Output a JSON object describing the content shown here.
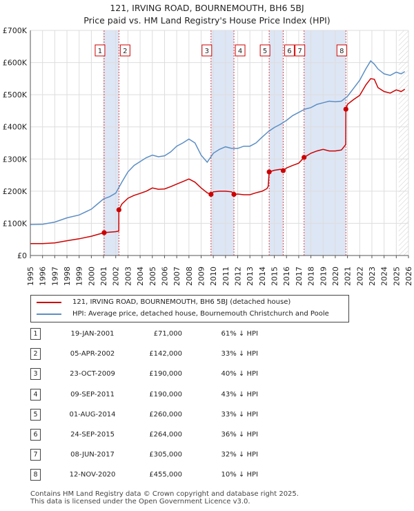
{
  "title": "121, IRVING ROAD, BOURNEMOUTH, BH6 5BJ",
  "subtitle": "Price paid vs. HM Land Registry's House Price Index (HPI)",
  "chart_data": {
    "type": "line",
    "title": "121, IRVING ROAD, BOURNEMOUTH, BH6 5BJ",
    "subtitle": "Price paid vs. HM Land Registry's House Price Index (HPI)",
    "xlim": [
      1995,
      2026
    ],
    "ylim": [
      0,
      700000
    ],
    "y_ticks": [
      0,
      100000,
      200000,
      300000,
      400000,
      500000,
      600000,
      700000
    ],
    "y_tick_labels": [
      "£0",
      "£100K",
      "£200K",
      "£300K",
      "£400K",
      "£500K",
      "£600K",
      "£700K"
    ],
    "x_ticks": [
      1995,
      1996,
      1997,
      1998,
      1999,
      2000,
      2001,
      2002,
      2003,
      2004,
      2005,
      2006,
      2007,
      2008,
      2009,
      2010,
      2011,
      2012,
      2013,
      2014,
      2015,
      2016,
      2017,
      2018,
      2019,
      2020,
      2021,
      2022,
      2023,
      2024,
      2025,
      2026
    ],
    "grid": true,
    "shaded_ranges": [
      [
        2001.05,
        2002.26
      ],
      [
        2009.81,
        2011.69
      ],
      [
        2014.58,
        2015.73
      ],
      [
        2017.44,
        2020.87
      ]
    ],
    "forecast_start": 2025.2,
    "series": [
      {
        "name": "121, IRVING ROAD, BOURNEMOUTH, BH6 5BJ (detached house)",
        "color": "#cc0000",
        "points": [
          [
            1995.0,
            37000
          ],
          [
            1996.0,
            37000
          ],
          [
            1997.0,
            39000
          ],
          [
            1998.0,
            46000
          ],
          [
            1999.0,
            52000
          ],
          [
            2000.0,
            60000
          ],
          [
            2001.05,
            71000
          ],
          [
            2002.0,
            74000
          ],
          [
            2002.25,
            76000
          ],
          [
            2002.26,
            142000
          ],
          [
            2002.5,
            160000
          ],
          [
            2003.0,
            178000
          ],
          [
            2003.5,
            187000
          ],
          [
            2004.0,
            193000
          ],
          [
            2004.5,
            200000
          ],
          [
            2005.0,
            210000
          ],
          [
            2005.5,
            206000
          ],
          [
            2006.0,
            207000
          ],
          [
            2006.5,
            214000
          ],
          [
            2007.0,
            222000
          ],
          [
            2007.5,
            230000
          ],
          [
            2008.0,
            238000
          ],
          [
            2008.5,
            228000
          ],
          [
            2009.0,
            210000
          ],
          [
            2009.5,
            195000
          ],
          [
            2009.81,
            190000
          ],
          [
            2010.0,
            198000
          ],
          [
            2010.5,
            200000
          ],
          [
            2011.0,
            200000
          ],
          [
            2011.5,
            198000
          ],
          [
            2011.69,
            190000
          ],
          [
            2012.0,
            191000
          ],
          [
            2012.5,
            189000
          ],
          [
            2013.0,
            189000
          ],
          [
            2013.5,
            195000
          ],
          [
            2014.0,
            200000
          ],
          [
            2014.4,
            208000
          ],
          [
            2014.5,
            215000
          ],
          [
            2014.58,
            260000
          ],
          [
            2015.0,
            265000
          ],
          [
            2015.5,
            268000
          ],
          [
            2015.73,
            264000
          ],
          [
            2016.0,
            272000
          ],
          [
            2016.5,
            280000
          ],
          [
            2017.0,
            287000
          ],
          [
            2017.44,
            305000
          ],
          [
            2018.0,
            318000
          ],
          [
            2018.5,
            325000
          ],
          [
            2019.0,
            330000
          ],
          [
            2019.5,
            325000
          ],
          [
            2020.0,
            325000
          ],
          [
            2020.5,
            328000
          ],
          [
            2020.86,
            345000
          ],
          [
            2020.87,
            455000
          ],
          [
            2021.0,
            470000
          ],
          [
            2021.5,
            485000
          ],
          [
            2022.0,
            498000
          ],
          [
            2022.5,
            530000
          ],
          [
            2022.9,
            550000
          ],
          [
            2023.2,
            548000
          ],
          [
            2023.5,
            522000
          ],
          [
            2024.0,
            510000
          ],
          [
            2024.5,
            505000
          ],
          [
            2025.0,
            515000
          ],
          [
            2025.4,
            510000
          ],
          [
            2025.7,
            517000
          ]
        ]
      },
      {
        "name": "HPI: Average price, detached house, Bournemouth Christchurch and Poole",
        "color": "#5b8ec4",
        "points": [
          [
            1995.0,
            96000
          ],
          [
            1996.0,
            97000
          ],
          [
            1997.0,
            104000
          ],
          [
            1998.0,
            117000
          ],
          [
            1999.0,
            126000
          ],
          [
            2000.0,
            144000
          ],
          [
            2000.5,
            160000
          ],
          [
            2001.0,
            176000
          ],
          [
            2001.5,
            183000
          ],
          [
            2002.0,
            194000
          ],
          [
            2002.5,
            228000
          ],
          [
            2003.0,
            260000
          ],
          [
            2003.5,
            280000
          ],
          [
            2004.0,
            292000
          ],
          [
            2004.5,
            304000
          ],
          [
            2005.0,
            312000
          ],
          [
            2005.5,
            307000
          ],
          [
            2006.0,
            310000
          ],
          [
            2006.5,
            322000
          ],
          [
            2007.0,
            340000
          ],
          [
            2007.5,
            350000
          ],
          [
            2008.0,
            362000
          ],
          [
            2008.5,
            350000
          ],
          [
            2009.0,
            312000
          ],
          [
            2009.5,
            290000
          ],
          [
            2010.0,
            318000
          ],
          [
            2010.5,
            330000
          ],
          [
            2011.0,
            338000
          ],
          [
            2011.5,
            333000
          ],
          [
            2012.0,
            333000
          ],
          [
            2012.5,
            340000
          ],
          [
            2013.0,
            340000
          ],
          [
            2013.5,
            350000
          ],
          [
            2014.0,
            368000
          ],
          [
            2014.5,
            385000
          ],
          [
            2015.0,
            398000
          ],
          [
            2015.5,
            408000
          ],
          [
            2016.0,
            420000
          ],
          [
            2016.5,
            435000
          ],
          [
            2017.0,
            445000
          ],
          [
            2017.5,
            455000
          ],
          [
            2018.0,
            460000
          ],
          [
            2018.5,
            470000
          ],
          [
            2019.0,
            475000
          ],
          [
            2019.5,
            480000
          ],
          [
            2020.0,
            478000
          ],
          [
            2020.5,
            480000
          ],
          [
            2021.0,
            495000
          ],
          [
            2021.5,
            520000
          ],
          [
            2022.0,
            545000
          ],
          [
            2022.5,
            580000
          ],
          [
            2022.9,
            605000
          ],
          [
            2023.2,
            595000
          ],
          [
            2023.5,
            580000
          ],
          [
            2024.0,
            565000
          ],
          [
            2024.5,
            560000
          ],
          [
            2025.0,
            570000
          ],
          [
            2025.4,
            565000
          ],
          [
            2025.7,
            572000
          ]
        ]
      }
    ],
    "sales": [
      {
        "label": "1",
        "x": 2001.05,
        "y": 71000
      },
      {
        "label": "2",
        "x": 2002.26,
        "y": 142000
      },
      {
        "label": "3",
        "x": 2009.81,
        "y": 190000
      },
      {
        "label": "4",
        "x": 2011.69,
        "y": 190000
      },
      {
        "label": "5",
        "x": 2014.58,
        "y": 260000
      },
      {
        "label": "6",
        "x": 2015.73,
        "y": 264000
      },
      {
        "label": "7",
        "x": 2017.44,
        "y": 305000
      },
      {
        "label": "8",
        "x": 2020.87,
        "y": 455000
      }
    ]
  },
  "legend": {
    "property": "121, IRVING ROAD, BOURNEMOUTH, BH6 5BJ (detached house)",
    "hpi": "HPI: Average price, detached house, Bournemouth Christchurch and Poole"
  },
  "transactions": [
    {
      "num": "1",
      "date": "19-JAN-2001",
      "price": "£71,000",
      "hpi": "61% ↓ HPI"
    },
    {
      "num": "2",
      "date": "05-APR-2002",
      "price": "£142,000",
      "hpi": "33% ↓ HPI"
    },
    {
      "num": "3",
      "date": "23-OCT-2009",
      "price": "£190,000",
      "hpi": "40% ↓ HPI"
    },
    {
      "num": "4",
      "date": "09-SEP-2011",
      "price": "£190,000",
      "hpi": "43% ↓ HPI"
    },
    {
      "num": "5",
      "date": "01-AUG-2014",
      "price": "£260,000",
      "hpi": "33% ↓ HPI"
    },
    {
      "num": "6",
      "date": "24-SEP-2015",
      "price": "£264,000",
      "hpi": "36% ↓ HPI"
    },
    {
      "num": "7",
      "date": "08-JUN-2017",
      "price": "£305,000",
      "hpi": "32% ↓ HPI"
    },
    {
      "num": "8",
      "date": "12-NOV-2020",
      "price": "£455,000",
      "hpi": "10% ↓ HPI"
    }
  ],
  "footer": {
    "line1": "Contains HM Land Registry data © Crown copyright and database right 2025.",
    "line2": "This data is licensed under the Open Government Licence v3.0."
  },
  "colors": {
    "property": "#cc0000",
    "hpi": "#5b8ec4",
    "shade": "#dde6f5",
    "grid": "#dddddd",
    "vline": "#dd4444"
  }
}
